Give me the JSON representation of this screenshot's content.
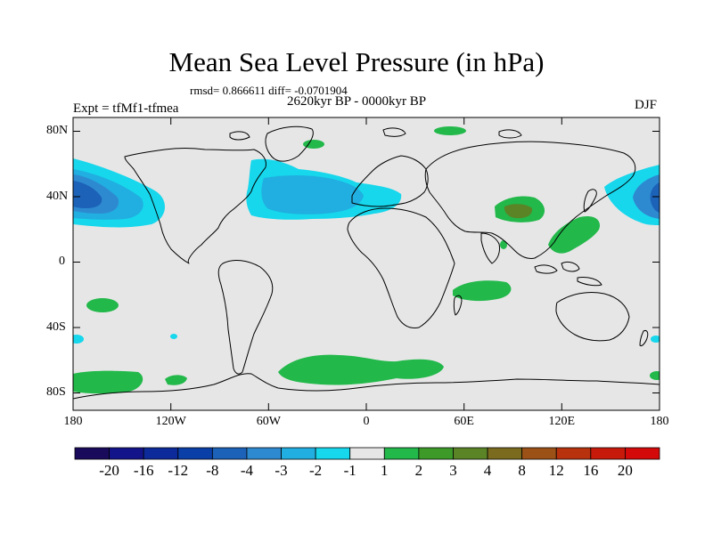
{
  "title": "Mean Sea Level Pressure (in hPa)",
  "stats": "rmsd= 0.866611 diff= -0.0701904",
  "period": "2620kyr BP - 0000kyr BP",
  "experiment": "Expt = tfMf1-tfmea",
  "season": "DJF",
  "lat_labels": [
    "80N",
    "40N",
    "0",
    "40S",
    "80S"
  ],
  "lon_labels": [
    "180",
    "120W",
    "60W",
    "0",
    "60E",
    "120E",
    "180"
  ],
  "colorbar": {
    "labels": [
      "-20",
      "-16",
      "-12",
      "-8",
      "-4",
      "-3",
      "-2",
      "-1",
      "1",
      "2",
      "3",
      "4",
      "8",
      "12",
      "16",
      "20"
    ],
    "colors": [
      "#1a0a5c",
      "#14148a",
      "#0c2a9a",
      "#0a3fa8",
      "#1c62b8",
      "#2e8ad0",
      "#21aee0",
      "#16d7ec",
      "#e6e6e6",
      "#22b84a",
      "#3e9a28",
      "#5a8426",
      "#7a6b1e",
      "#9c5216",
      "#b8320e",
      "#c81a0a",
      "#d40a0a"
    ]
  },
  "map_colors": {
    "background": "#e6e6e6",
    "coast": "#000000",
    "blue_light": "#16d7ec",
    "blue_mid": "#21aee0",
    "blue_strong": "#2e8ad0",
    "blue_dark": "#1c62b8",
    "green": "#22b84a",
    "green_dark": "#5a8426"
  }
}
